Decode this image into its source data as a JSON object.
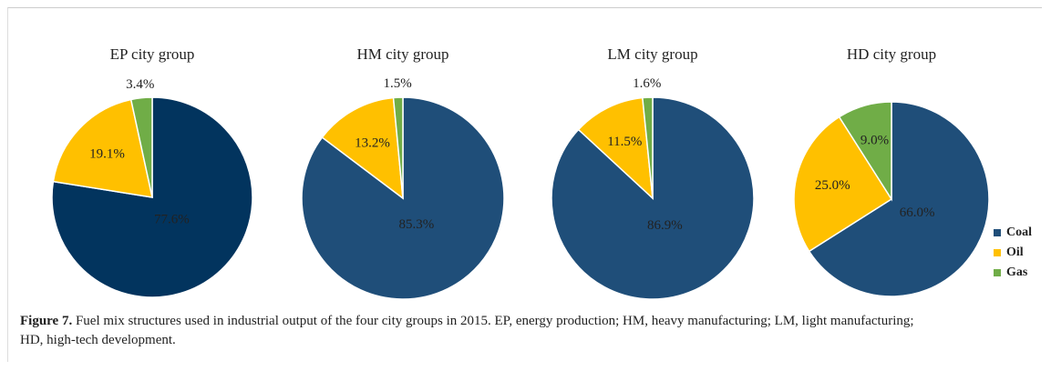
{
  "chart_data": [
    {
      "type": "pie",
      "title": "EP city group",
      "categories": [
        "Coal",
        "Oil",
        "Gas"
      ],
      "values": [
        77.6,
        19.1,
        3.4
      ],
      "value_labels": [
        "77.6%",
        "19.1%",
        "3.4%"
      ],
      "colors": [
        "#02345e",
        "#ffc000",
        "#70ad47"
      ]
    },
    {
      "type": "pie",
      "title": "HM city group",
      "categories": [
        "Coal",
        "Oil",
        "Gas"
      ],
      "values": [
        85.3,
        13.2,
        1.5
      ],
      "value_labels": [
        "85.3%",
        "13.2%",
        "1.5%"
      ],
      "colors": [
        "#1f4e79",
        "#ffc000",
        "#70ad47"
      ]
    },
    {
      "type": "pie",
      "title": "LM city group",
      "categories": [
        "Coal",
        "Oil",
        "Gas"
      ],
      "values": [
        86.9,
        11.5,
        1.6
      ],
      "value_labels": [
        "86.9%",
        "11.5%",
        "1.6%"
      ],
      "colors": [
        "#1f4e79",
        "#ffc000",
        "#70ad47"
      ]
    },
    {
      "type": "pie",
      "title": "HD city group",
      "categories": [
        "Coal",
        "Oil",
        "Gas"
      ],
      "values": [
        66.0,
        25.0,
        9.0
      ],
      "value_labels": [
        "66.0%",
        "25.0%",
        "9.0%"
      ],
      "colors": [
        "#1f4e79",
        "#ffc000",
        "#70ad47"
      ],
      "legend": "right"
    }
  ],
  "caption": {
    "label": "Figure 7.",
    "text": " Fuel mix structures used in industrial output of the four city groups in 2015. EP, energy production; HM, heavy manufacturing; LM, light manufacturing; HD, high-tech development."
  }
}
